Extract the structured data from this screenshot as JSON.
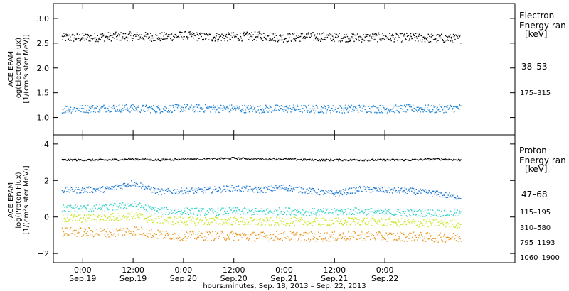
{
  "chart_data": [
    {
      "type": "scatter",
      "panel": "top",
      "ylabel": [
        "ACE EPAM",
        "log(Electron Flux)",
        "[1/(cm²s ster MeV)]"
      ],
      "ylim": [
        0.65,
        3.3
      ],
      "yticks": [
        "1.0",
        "1.5",
        "2.0",
        "2.5",
        "3.0"
      ],
      "ytick_values": [
        1.0,
        1.5,
        2.0,
        2.5,
        3.0
      ],
      "legend": {
        "placement": "right",
        "title": [
          "Electron",
          "Energy ran",
          "[keV]"
        ]
      },
      "series": [
        {
          "name": "38–53",
          "color": "#000000",
          "x": [
            0,
            6,
            12,
            18,
            24,
            30,
            36,
            42,
            48,
            54,
            60,
            66,
            72,
            78,
            84,
            90
          ],
          "values": [
            2.62,
            2.64,
            2.65,
            2.63,
            2.66,
            2.63,
            2.64,
            2.65,
            2.62,
            2.64,
            2.63,
            2.62,
            2.63,
            2.62,
            2.61,
            2.6
          ]
        },
        {
          "name": "175–315",
          "color": "#1e82d2",
          "x": [
            0,
            6,
            12,
            18,
            24,
            30,
            36,
            42,
            48,
            54,
            60,
            66,
            72,
            78,
            84,
            90
          ],
          "values": [
            1.18,
            1.2,
            1.19,
            1.18,
            1.2,
            1.19,
            1.19,
            1.18,
            1.19,
            1.18,
            1.18,
            1.19,
            1.18,
            1.19,
            1.18,
            1.2
          ]
        }
      ]
    },
    {
      "type": "scatter",
      "panel": "bottom",
      "ylabel": [
        "ACE EPAM",
        "log(Proton Flux)",
        "[1/(cm²s ster MeV)]"
      ],
      "ylim": [
        -2.5,
        4.5
      ],
      "yticks": [
        "−2",
        "0",
        "2",
        "4"
      ],
      "ytick_values": [
        -2,
        0,
        2,
        4
      ],
      "legend": {
        "placement": "right",
        "title": [
          "Proton",
          "Energy ran",
          "[keV]"
        ]
      },
      "series": [
        {
          "name": "47–68",
          "color": "#000000",
          "x": [
            0,
            6,
            12,
            18,
            24,
            30,
            36,
            42,
            48,
            54,
            60,
            66,
            72,
            78,
            84,
            90
          ],
          "values": [
            3.15,
            3.15,
            3.2,
            3.15,
            3.2,
            3.2,
            3.25,
            3.2,
            3.2,
            3.15,
            3.15,
            3.15,
            3.15,
            3.15,
            3.2,
            3.15
          ]
        },
        {
          "name": "115–195",
          "color": "#1e78d2",
          "x": [
            0,
            6,
            12,
            18,
            24,
            30,
            36,
            42,
            48,
            54,
            60,
            66,
            72,
            78,
            84,
            90
          ],
          "values": [
            1.5,
            1.55,
            1.9,
            1.4,
            1.45,
            1.5,
            1.6,
            1.5,
            1.65,
            1.45,
            1.3,
            1.55,
            1.5,
            1.45,
            1.3,
            1.1
          ]
        },
        {
          "name": "310–580",
          "color": "#32d2c8",
          "x": [
            0,
            6,
            12,
            18,
            24,
            30,
            36,
            42,
            48,
            54,
            60,
            66,
            72,
            78,
            84,
            90
          ],
          "values": [
            0.5,
            0.55,
            0.7,
            0.35,
            0.35,
            0.3,
            0.35,
            0.3,
            0.35,
            0.3,
            0.3,
            0.35,
            0.25,
            0.25,
            0.25,
            0.2
          ]
        },
        {
          "name": "795–1193",
          "color": "#c8e61e",
          "x": [
            0,
            6,
            12,
            18,
            24,
            30,
            36,
            42,
            48,
            54,
            60,
            66,
            72,
            78,
            84,
            90
          ],
          "values": [
            -0.05,
            0.0,
            0.1,
            -0.15,
            -0.2,
            -0.2,
            -0.2,
            -0.25,
            -0.2,
            -0.25,
            -0.25,
            -0.2,
            -0.25,
            -0.3,
            -0.3,
            -0.35
          ]
        },
        {
          "name": "1060–1900",
          "color": "#e6961e",
          "x": [
            0,
            6,
            12,
            18,
            24,
            30,
            36,
            42,
            48,
            54,
            60,
            66,
            72,
            78,
            84,
            90
          ],
          "values": [
            -0.8,
            -0.85,
            -0.7,
            -0.95,
            -1.0,
            -1.0,
            -1.0,
            -1.05,
            -1.0,
            -1.05,
            -1.05,
            -1.0,
            -1.05,
            -1.05,
            -1.1,
            -1.1
          ]
        }
      ]
    }
  ],
  "x_axis": {
    "range_hours": [
      -7,
      103
    ],
    "ticks": [
      {
        "hour": 0,
        "time": "0:00",
        "date": "Sep.19"
      },
      {
        "hour": 12,
        "time": "12:00",
        "date": "Sep.19"
      },
      {
        "hour": 24,
        "time": "0:00",
        "date": "Sep.20"
      },
      {
        "hour": 36,
        "time": "12:00",
        "date": "Sep.20"
      },
      {
        "hour": 48,
        "time": "0:00",
        "date": "Sep.21"
      },
      {
        "hour": 60,
        "time": "12:00",
        "date": "Sep.21"
      },
      {
        "hour": 72,
        "time": "0:00",
        "date": "Sep.22"
      }
    ],
    "label": "hours:minutes, Sep. 18, 2013 – Sep. 22, 2013"
  }
}
